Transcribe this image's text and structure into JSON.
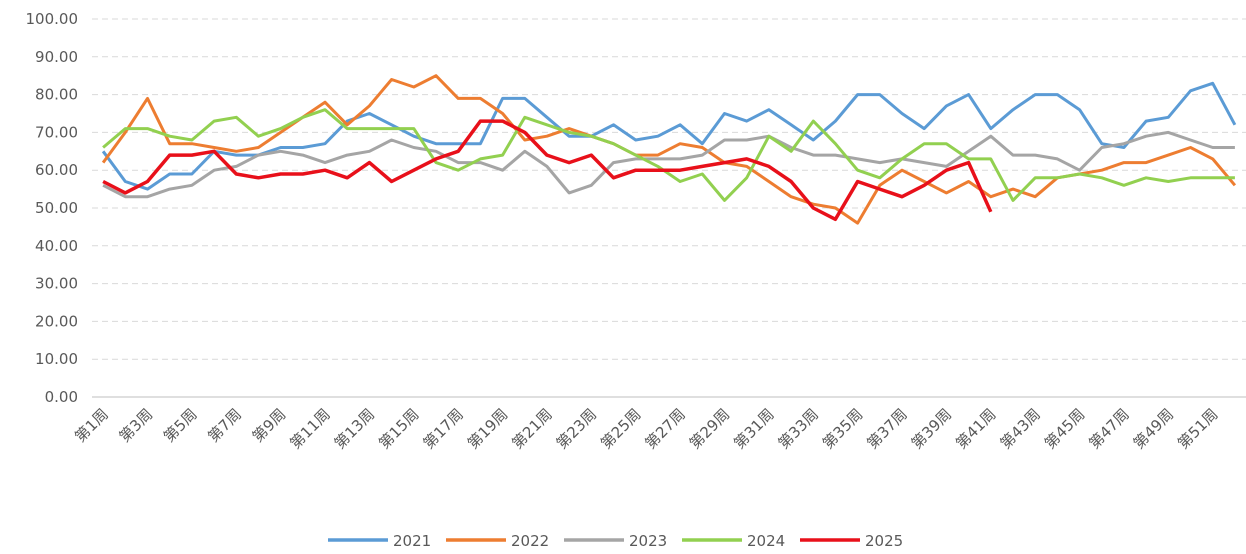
{
  "chart_data": {
    "type": "line",
    "categories": [
      "第1周",
      null,
      "第3周",
      null,
      "第5周",
      null,
      "第7周",
      null,
      "第9周",
      null,
      "第11周",
      null,
      "第13周",
      null,
      "第15周",
      null,
      "第17周",
      null,
      "第19周",
      null,
      "第21周",
      null,
      "第23周",
      null,
      "第25周",
      null,
      "第27周",
      null,
      "第29周",
      null,
      "第31周",
      null,
      "第33周",
      null,
      "第35周",
      null,
      "第37周",
      null,
      "第39周",
      null,
      "第41周",
      null,
      "第43周",
      null,
      "第45周",
      null,
      "第47周",
      null,
      "第49周",
      null,
      "第51周",
      null
    ],
    "series": [
      {
        "name": "2021",
        "color": "#5b9bd5",
        "values": [
          65,
          57,
          55,
          59,
          59,
          65,
          64,
          64,
          66,
          66,
          67,
          73,
          75,
          72,
          69,
          67,
          67,
          67,
          79,
          79,
          74,
          69,
          69,
          72,
          68,
          69,
          72,
          67,
          75,
          73,
          76,
          72,
          68,
          73,
          80,
          80,
          75,
          71,
          77,
          80,
          71,
          76,
          80,
          80,
          76,
          67,
          66,
          73,
          74,
          81,
          83,
          72
        ]
      },
      {
        "name": "2022",
        "color": "#ed7d31",
        "values": [
          62,
          70,
          79,
          67,
          67,
          66,
          65,
          66,
          70,
          74,
          78,
          72,
          77,
          84,
          82,
          85,
          79,
          79,
          75,
          68,
          69,
          71,
          69,
          67,
          64,
          64,
          67,
          66,
          62,
          61,
          57,
          53,
          51,
          50,
          46,
          56,
          60,
          57,
          54,
          57,
          53,
          55,
          53,
          58,
          59,
          60,
          62,
          62,
          64,
          66,
          63,
          56
        ]
      },
      {
        "name": "2023",
        "color": "#a5a5a5",
        "values": [
          56,
          53,
          53,
          55,
          56,
          60,
          61,
          64,
          65,
          64,
          62,
          64,
          65,
          68,
          66,
          65,
          62,
          62,
          60,
          65,
          61,
          54,
          56,
          62,
          63,
          63,
          63,
          64,
          68,
          68,
          69,
          66,
          64,
          64,
          63,
          62,
          63,
          62,
          61,
          65,
          69,
          64,
          64,
          63,
          60,
          66,
          67,
          69,
          70,
          68,
          66,
          66
        ]
      },
      {
        "name": "2024",
        "color": "#92d050",
        "values": [
          66,
          71,
          71,
          69,
          68,
          73,
          74,
          69,
          71,
          74,
          76,
          71,
          71,
          71,
          71,
          62,
          60,
          63,
          64,
          74,
          72,
          70,
          69,
          67,
          64,
          61,
          57,
          59,
          52,
          58,
          69,
          65,
          73,
          67,
          60,
          58,
          63,
          67,
          67,
          63,
          63,
          52,
          58,
          58,
          59,
          58,
          56,
          58,
          57,
          58,
          58,
          58
        ]
      },
      {
        "name": "2025",
        "color": "#e8101a",
        "values": [
          57,
          54,
          57,
          64,
          64,
          65,
          59,
          58,
          59,
          59,
          60,
          58,
          62,
          57,
          60,
          63,
          65,
          73,
          73,
          70,
          64,
          62,
          64,
          58,
          60,
          60,
          60,
          61,
          62,
          63,
          61,
          57,
          50,
          47,
          57,
          55,
          53,
          56,
          60,
          62,
          49,
          null,
          null,
          null,
          null,
          null,
          null,
          null,
          null,
          null,
          null,
          null
        ]
      }
    ],
    "ylim": [
      0,
      100
    ],
    "yticks": [
      {
        "value": 0,
        "label": "0.00"
      },
      {
        "value": 10,
        "label": "10.00"
      },
      {
        "value": 20,
        "label": "20.00"
      },
      {
        "value": 30,
        "label": "30.00"
      },
      {
        "value": 40,
        "label": "40.00"
      },
      {
        "value": 50,
        "label": "50.00"
      },
      {
        "value": 60,
        "label": "60.00"
      },
      {
        "value": 70,
        "label": "70.00"
      },
      {
        "value": 80,
        "label": "80.00"
      },
      {
        "value": 90,
        "label": "90.00"
      },
      {
        "value": 100,
        "label": "100.00"
      }
    ],
    "grid": true,
    "legend": "bottom"
  }
}
